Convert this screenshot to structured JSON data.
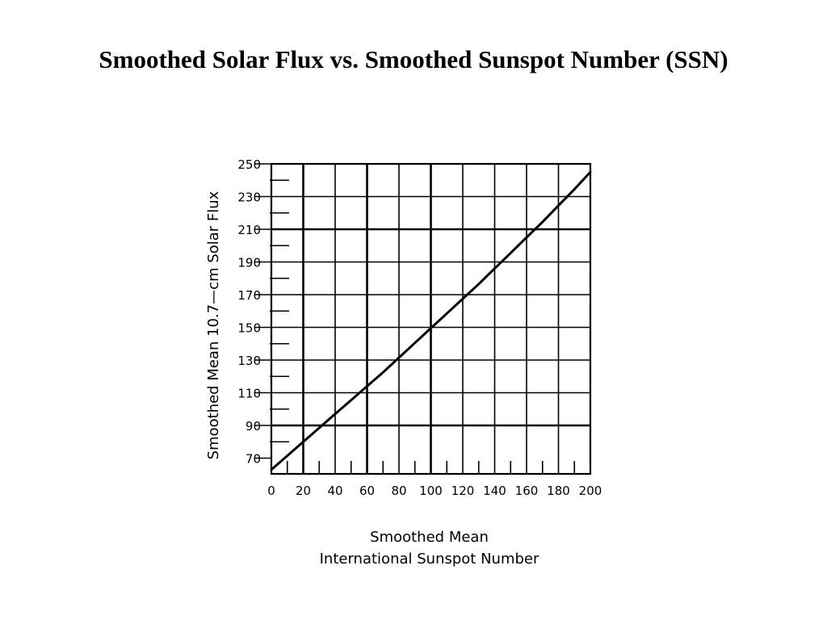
{
  "page": {
    "title": "Smoothed Solar Flux vs. Smoothed Sunspot Number (SSN)"
  },
  "chart_data": {
    "type": "line",
    "title": "Smoothed Solar Flux vs. Smoothed Sunspot Number (SSN)",
    "xlabel_lines": [
      "Smoothed Mean",
      "International Sunspot Number"
    ],
    "ylabel": "Smoothed Mean 10.7—cm Solar Flux",
    "xlim": [
      0,
      200
    ],
    "ylim": [
      60,
      250
    ],
    "x_ticks": [
      0,
      20,
      40,
      60,
      80,
      100,
      120,
      140,
      160,
      180,
      200
    ],
    "x_minor_ticks": [
      10,
      30,
      50,
      70,
      90,
      110,
      130,
      150,
      170,
      190
    ],
    "y_ticks": [
      70,
      90,
      110,
      130,
      150,
      170,
      190,
      210,
      230,
      250
    ],
    "y_minor_ticks": [
      80,
      100,
      120,
      140,
      160,
      180,
      200,
      220,
      240
    ],
    "y_gridlines": [
      90,
      110,
      130,
      150,
      170,
      190,
      210,
      230,
      250
    ],
    "y_bold_gridlines": [
      90,
      210
    ],
    "x_gridlines": [
      20,
      40,
      60,
      80,
      100,
      120,
      140,
      160,
      180
    ],
    "x_bold_gridlines": [
      20,
      60,
      100
    ],
    "grid": true,
    "line_color": "#000000",
    "series": [
      {
        "x": [
          0,
          10,
          20,
          30,
          40,
          50,
          60,
          70,
          80,
          90,
          100,
          110,
          120,
          130,
          140,
          150,
          160,
          170,
          180,
          190,
          200
        ],
        "values": [
          63,
          71.5,
          80,
          88.5,
          97,
          105.5,
          114,
          122.5,
          131.5,
          140.5,
          149.5,
          158.5,
          167.5,
          176.5,
          186,
          195.5,
          205,
          214.5,
          224.5,
          234.5,
          245
        ]
      }
    ]
  }
}
